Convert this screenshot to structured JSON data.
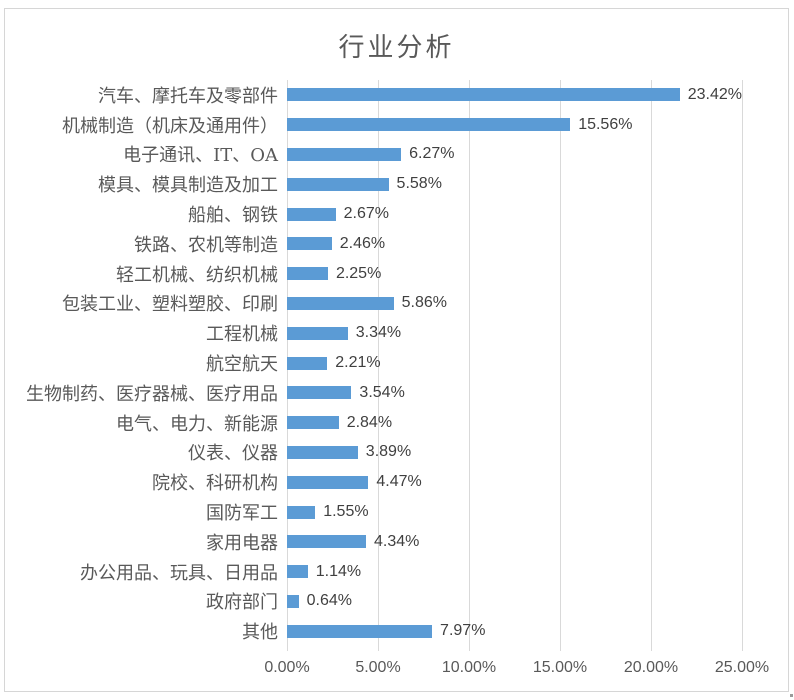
{
  "chart_data": {
    "type": "bar",
    "orientation": "horizontal",
    "title": "行业分析",
    "categories": [
      "汽车、摩托车及零部件",
      "机械制造（机床及通用件）",
      "电子通讯、IT、OA",
      "模具、模具制造及加工",
      "船舶、钢铁",
      "铁路、农机等制造",
      "轻工机械、纺织机械",
      "包装工业、塑料塑胶、印刷",
      "工程机械",
      "航空航天",
      "生物制药、医疗器械、医疗用品",
      "电气、电力、新能源",
      "仪表、仪器",
      "院校、科研机构",
      "国防军工",
      "家用电器",
      "办公用品、玩具、日用品",
      "政府部门",
      "其他"
    ],
    "values": [
      23.42,
      15.56,
      6.27,
      5.58,
      2.67,
      2.46,
      2.25,
      5.86,
      3.34,
      2.21,
      3.54,
      2.84,
      3.89,
      4.47,
      1.55,
      4.34,
      1.14,
      0.64,
      7.97
    ],
    "value_labels": [
      "23.42%",
      "15.56%",
      "6.27%",
      "5.58%",
      "2.67%",
      "2.46%",
      "2.25%",
      "5.86%",
      "3.34%",
      "2.21%",
      "3.54%",
      "2.84%",
      "3.89%",
      "4.47%",
      "1.55%",
      "4.34%",
      "1.14%",
      "0.64%",
      "7.97%"
    ],
    "xlabel": "",
    "ylabel": "",
    "xlim": [
      0,
      25
    ],
    "x_ticks": [
      "0.00%",
      "5.00%",
      "10.00%",
      "15.00%",
      "20.00%",
      "25.00%"
    ],
    "x_tick_values": [
      0,
      5,
      10,
      15,
      20,
      25
    ],
    "grid": true,
    "legend": "none",
    "colors": {
      "bar": "#5b9bd5",
      "gridline": "#d9d9d9",
      "axis_text": "#595959",
      "value_label_text": "#404040",
      "title_text": "#595959",
      "frame_border": "#d6d6d6",
      "background": "#ffffff"
    }
  }
}
